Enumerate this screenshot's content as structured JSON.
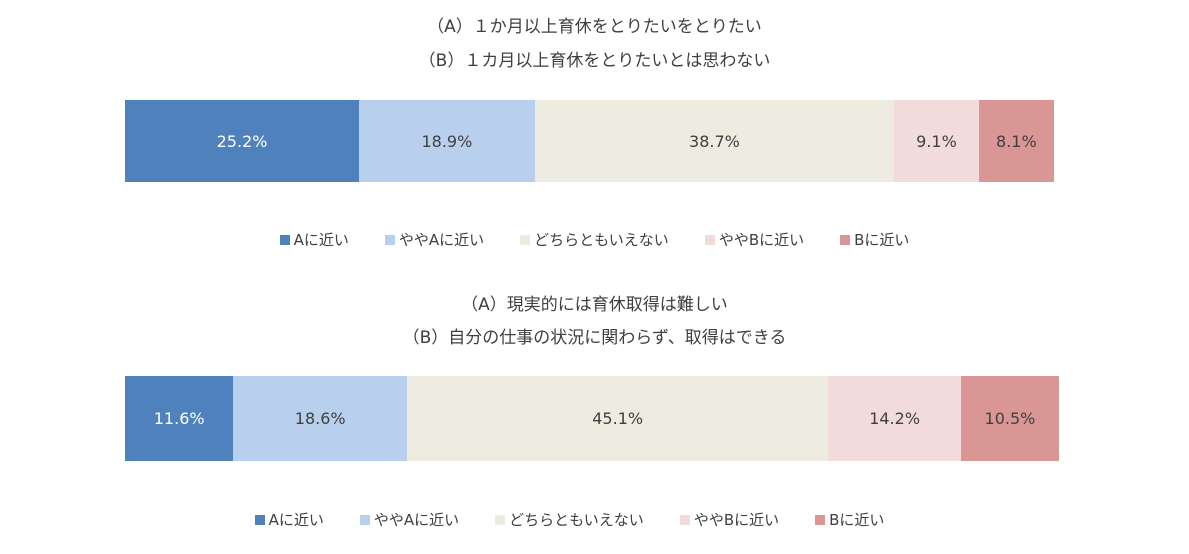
{
  "colors": {
    "A_near": "#4f81bd",
    "slightly_A": "#b9cfee",
    "neither": "#eeebe1",
    "slightly_B": "#f2dcdb",
    "B_near": "#d99694"
  },
  "legend": [
    "Aに近い",
    "ややAに近い",
    "どちらともいえない",
    "ややBに近い",
    "Bに近い"
  ],
  "chart_data": [
    {
      "type": "bar",
      "orientation": "horizontal-stacked-100",
      "title_lines": [
        "（A）１か月以上育休をとりたいをとりたい",
        "（B）１カ月以上育休をとりたいとは思わない"
      ],
      "categories": [
        "Aに近い",
        "ややAに近い",
        "どちらともいえない",
        "ややBに近い",
        "Bに近い"
      ],
      "values": [
        25.2,
        18.9,
        38.7,
        9.1,
        8.1
      ],
      "labels": [
        "25.2%",
        "18.9%",
        "38.7%",
        "9.1%",
        "8.1%"
      ]
    },
    {
      "type": "bar",
      "orientation": "horizontal-stacked-100",
      "title_lines": [
        "（A）現実的には育休取得は難しい",
        "（B）自分の仕事の状況に関わらず、取得はできる"
      ],
      "categories": [
        "Aに近い",
        "ややAに近い",
        "どちらともいえない",
        "ややBに近い",
        "Bに近い"
      ],
      "values": [
        11.6,
        18.6,
        45.1,
        14.2,
        10.5
      ],
      "labels": [
        "11.6%",
        "18.6%",
        "45.1%",
        "14.2%",
        "10.5%"
      ]
    }
  ]
}
